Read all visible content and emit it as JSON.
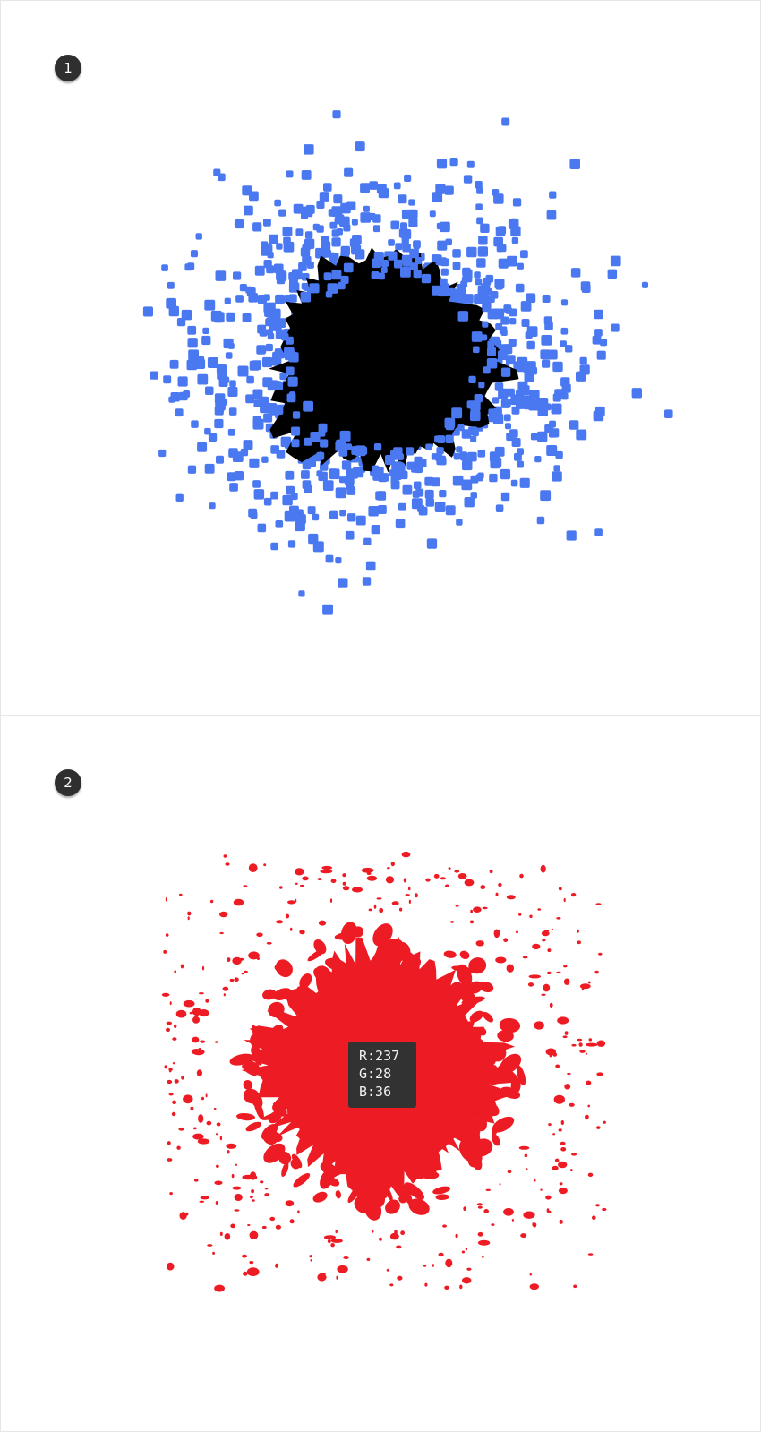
{
  "panels": [
    {
      "step_number": "1",
      "blob_color": "#000000",
      "particle_color": "#4a78f0"
    },
    {
      "step_number": "2",
      "splatter_color": "#ed1c24"
    }
  ],
  "color_readout": {
    "r_label": "R:237",
    "g_label": "G:28",
    "b_label": "B:36"
  }
}
